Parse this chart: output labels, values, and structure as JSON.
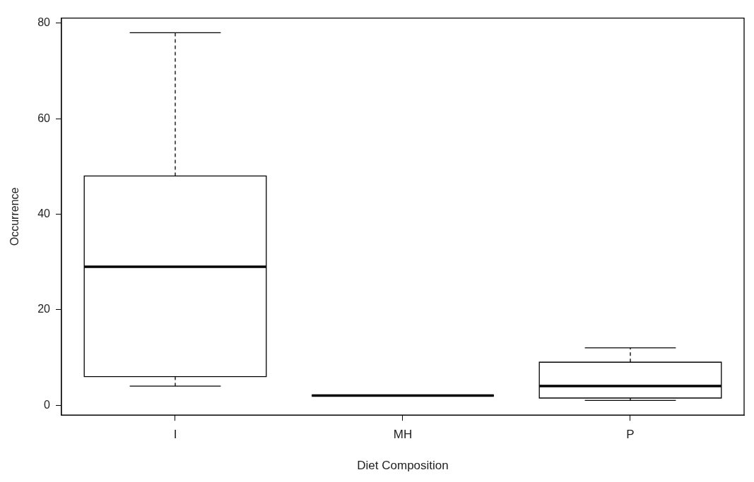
{
  "chart_data": {
    "type": "box",
    "xlabel": "Diet Composition",
    "ylabel": "Occurrence",
    "categories": [
      "I",
      "MH",
      "P"
    ],
    "boxes": [
      {
        "low": 4,
        "q1": 6,
        "median": 29,
        "q3": 48,
        "high": 78
      },
      {
        "low": 2,
        "q1": 2,
        "median": 2,
        "q3": 2,
        "high": 2
      },
      {
        "low": 1,
        "q1": 1.5,
        "median": 4,
        "q3": 9,
        "high": 12
      }
    ],
    "ylim": [
      -2.08,
      81.08
    ],
    "yticks": [
      0,
      20,
      40,
      60,
      80
    ]
  }
}
